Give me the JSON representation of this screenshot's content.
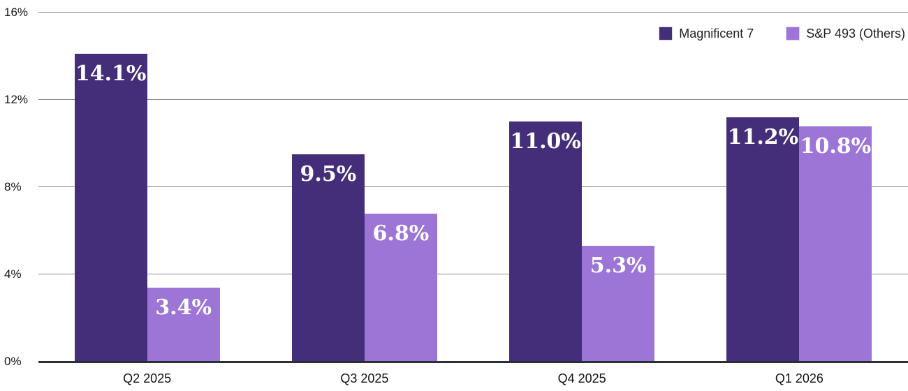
{
  "chart_data": {
    "type": "bar",
    "title": "",
    "xlabel": "",
    "ylabel": "",
    "categories": [
      "Q2 2025",
      "Q3 2025",
      "Q4 2025",
      "Q1 2026"
    ],
    "series": [
      {
        "name": "Magnificent 7",
        "color": "#452e79",
        "values": [
          14.1,
          9.5,
          11.0,
          11.2
        ],
        "labels": [
          "14.1%",
          "9.5%",
          "11.0%",
          "11.2%"
        ]
      },
      {
        "name": "S&P 493 (Others)",
        "color": "#9c75d7",
        "values": [
          3.4,
          6.8,
          5.3,
          10.8
        ],
        "labels": [
          "3.4%",
          "6.8%",
          "5.3%",
          "10.8%"
        ]
      }
    ],
    "ylim": [
      0,
      16
    ],
    "yticks": [
      {
        "value": 0,
        "label": "0%"
      },
      {
        "value": 4,
        "label": "4%"
      },
      {
        "value": 8,
        "label": "8%"
      },
      {
        "value": 12,
        "label": "12%"
      },
      {
        "value": 16,
        "label": "16%"
      }
    ],
    "grid": true,
    "legend_position": "top-right",
    "bar_label_color": "#ffffff",
    "gridline_color": "#8c8c8c",
    "axis_line_color": "#2b2f36",
    "tick_label_color": "#141414"
  }
}
